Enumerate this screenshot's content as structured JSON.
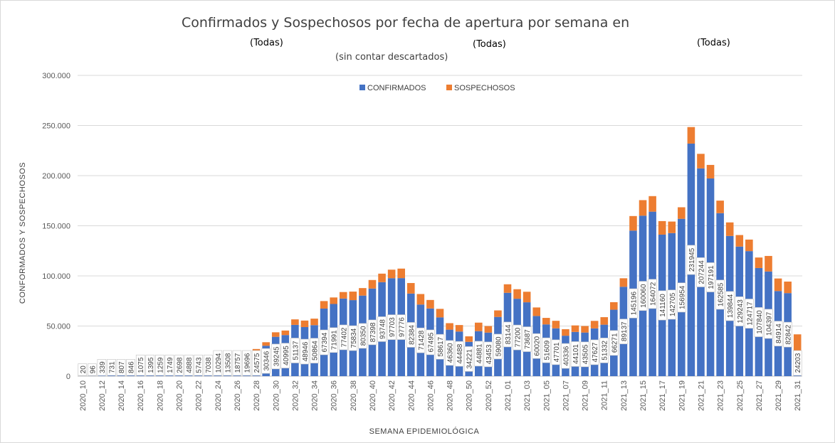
{
  "header": {
    "title": "Confirmados y Sospechosos por fecha de apertura por semana en",
    "filters": [
      "(Todas)",
      "(Todas)",
      "(Todas)"
    ],
    "subtitle": "(sin contar descartados)"
  },
  "colors": {
    "confirmed": "#4472C4",
    "suspected": "#ED7D31",
    "grid": "#d9d9d9",
    "axis_text": "#595959"
  },
  "chart_data": {
    "type": "bar",
    "stacked": true,
    "title": "Confirmados y Sospechosos por fecha de apertura por semana en",
    "xlabel": "SEMANA EPIDEMIOLÓGICA",
    "ylabel": "CONFORMADOS Y SOSPECHOSOS",
    "ylim": [
      0,
      300000
    ],
    "yticks": [
      0,
      50000,
      100000,
      150000,
      200000,
      250000,
      300000
    ],
    "ytick_labels": [
      "0",
      "50.000",
      "100.000",
      "150.000",
      "200.000",
      "250.000",
      "300.000"
    ],
    "legend": {
      "position": "top",
      "entries": [
        "CONFIRMADOS",
        "SOSPECHOSOS"
      ]
    },
    "categories": [
      "2020_10",
      "2020_11",
      "2020_12",
      "2020_13",
      "2020_14",
      "2020_15",
      "2020_16",
      "2020_17",
      "2020_18",
      "2020_19",
      "2020_20",
      "2020_21",
      "2020_22",
      "2020_23",
      "2020_24",
      "2020_25",
      "2020_26",
      "2020_27",
      "2020_28",
      "2020_29",
      "2020_30",
      "2020_31",
      "2020_32",
      "2020_33",
      "2020_34",
      "2020_35",
      "2020_36",
      "2020_37",
      "2020_38",
      "2020_39",
      "2020_40",
      "2020_41",
      "2020_42",
      "2020_43",
      "2020_44",
      "2020_45",
      "2020_46",
      "2020_47",
      "2020_48",
      "2020_49",
      "2020_50",
      "2020_51",
      "2020_52",
      "2020_53",
      "2021_01",
      "2021_02",
      "2021_03",
      "2021_04",
      "2021_05",
      "2021_06",
      "2021_07",
      "2021_08",
      "2021_09",
      "2021_10",
      "2021_11",
      "2021_12",
      "2021_13",
      "2021_14",
      "2021_15",
      "2021_16",
      "2021_17",
      "2021_18",
      "2021_19",
      "2021_20",
      "2021_21",
      "2021_22",
      "2021_23",
      "2021_24",
      "2021_25",
      "2021_26",
      "2021_27",
      "2021_28",
      "2021_29",
      "2021_30",
      "2021_31"
    ],
    "x_tick_labels": [
      "2020_10",
      "2020_12",
      "2020_14",
      "2020_16",
      "2020_18",
      "2020_20",
      "2020_22",
      "2020_24",
      "2020_26",
      "2020_28",
      "2020_30",
      "2020_32",
      "2020_34",
      "2020_36",
      "2020_38",
      "2020_40",
      "2020_42",
      "2020_44",
      "2020_46",
      "2020_48",
      "2020_50",
      "2020_52",
      "2021_01",
      "2021_03",
      "2021_05",
      "2021_07",
      "2021_09",
      "2021_11",
      "2021_13",
      "2021_15",
      "2021_17",
      "2021_19",
      "2021_21",
      "2021_23",
      "2021_25",
      "2021_27",
      "2021_29",
      "2021_31"
    ],
    "series": [
      {
        "name": "CONFIRMADOS",
        "values": [
          20,
          96,
          339,
          731,
          807,
          846,
          1075,
          1395,
          1259,
          1749,
          2698,
          4888,
          5743,
          7038,
          10294,
          13508,
          18757,
          19696,
          24575,
          30346,
          39245,
          40995,
          51137,
          48946,
          50864,
          67394,
          71991,
          77402,
          75834,
          80350,
          87398,
          93748,
          97703,
          97776,
          82384,
          71428,
          67495,
          58617,
          46360,
          44488,
          34221,
          44881,
          43453,
          59080,
          83144,
          77200,
          73687,
          60020,
          51609,
          47701,
          40336,
          44101,
          43505,
          47627,
          51332,
          66271,
          89137,
          145196,
          160060,
          164072,
          141160,
          142705,
          156954,
          231945,
          207244,
          197191,
          162585,
          139844,
          129243,
          124717,
          107840,
          104397,
          84914,
          82842,
          24203
        ]
      },
      {
        "name": "SOSPECHOSOS",
        "values": [
          0,
          0,
          0,
          0,
          0,
          0,
          0,
          0,
          0,
          0,
          0,
          0,
          0,
          0,
          0,
          200,
          400,
          1500,
          2500,
          3500,
          4500,
          4500,
          5500,
          6500,
          6500,
          7500,
          6500,
          6500,
          8500,
          7500,
          8500,
          8500,
          8500,
          9500,
          10500,
          10500,
          8500,
          8500,
          6500,
          6500,
          5500,
          8500,
          6500,
          6500,
          8500,
          9500,
          10500,
          8500,
          6500,
          7500,
          6500,
          6500,
          6500,
          7500,
          7500,
          7500,
          8500,
          14500,
          15500,
          15500,
          13500,
          11500,
          11500,
          16500,
          14500,
          13500,
          12500,
          13500,
          11500,
          11500,
          10500,
          15500,
          12500,
          11500,
          17500
        ]
      }
    ]
  }
}
